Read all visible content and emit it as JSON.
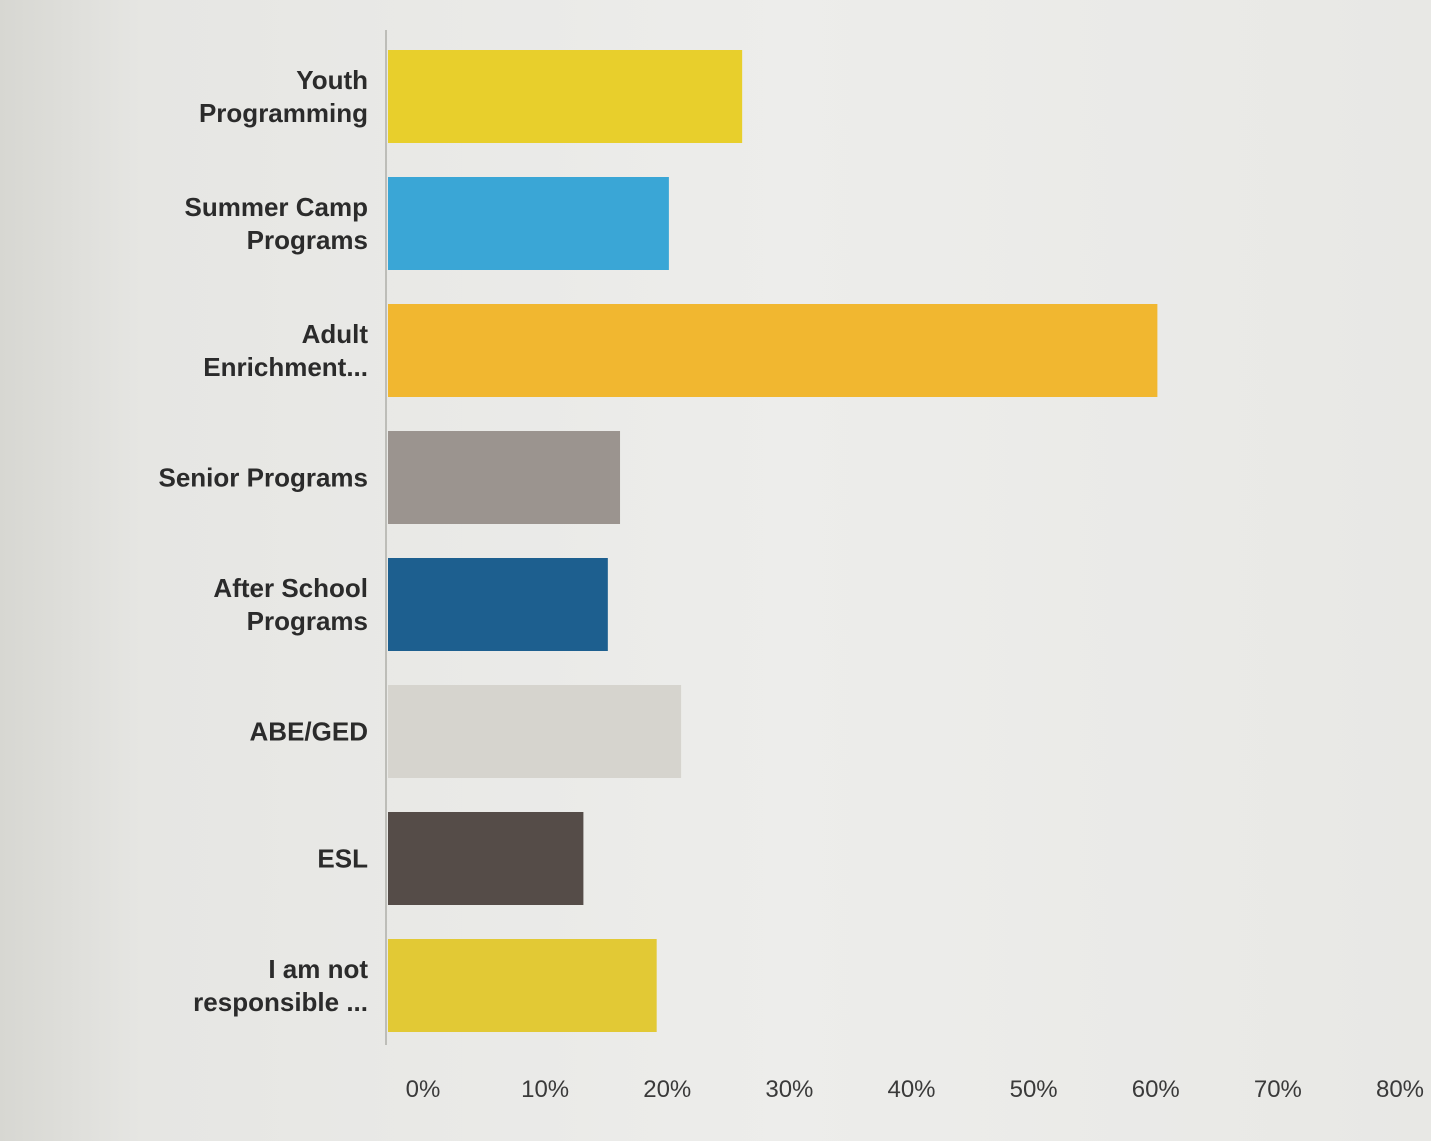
{
  "chart_data": {
    "type": "bar",
    "orientation": "horizontal",
    "categories": [
      "Youth Programming",
      "Summer Camp Programs",
      "Adult Enrichment...",
      "Senior Programs",
      "After School Programs",
      "ABE/GED",
      "ESL",
      "I am not responsible ..."
    ],
    "values": [
      29,
      23,
      63,
      19,
      18,
      24,
      16,
      22
    ],
    "value_unit": "%",
    "colors": [
      "#e8cf2c",
      "#3aa6d6",
      "#f1b730",
      "#9b948f",
      "#1d5f8f",
      "#d6d4ce",
      "#554c48",
      "#e2c935"
    ],
    "xlim": [
      0,
      80
    ],
    "x_ticks": [
      "0%",
      "10%",
      "20%",
      "30%",
      "40%",
      "50%",
      "60%",
      "70%",
      "80%"
    ],
    "title": "",
    "xlabel": "",
    "ylabel": "",
    "grid": false,
    "legend": "none"
  }
}
